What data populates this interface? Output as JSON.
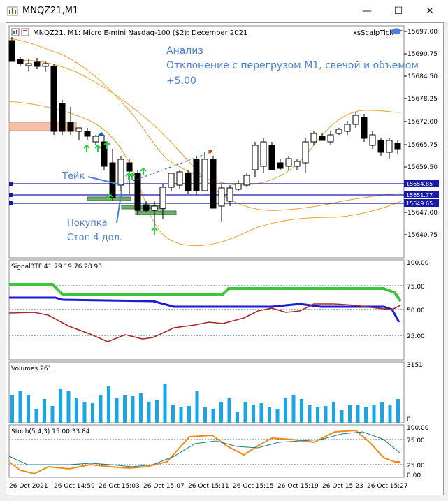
{
  "window": {
    "title": "MNQZ21,M1",
    "minimize_icon": "minimize-icon",
    "maximize_icon": "maximize-icon",
    "close_icon": "close-icon"
  },
  "chart": {
    "header": "MNQZ21, M1:  Micro E-mini Nasdaq-100 ($2): December 2021",
    "indicator_name": "xsScalpTick",
    "annotation_lines": [
      "Анализ",
      "Отклонение с перегрузом М1, свечой и объемом",
      "+5,00"
    ],
    "label_take": "Тейк",
    "label_buy": "Покупка",
    "label_stop": "Стоп 4 дол.",
    "price_ticks": [
      "15697.00",
      "15690.75",
      "15684.50",
      "15678.25",
      "15672.00",
      "15665.75",
      "15659.50",
      "15647.00",
      "15640.75"
    ],
    "price_tags": [
      {
        "label": "15654.85",
        "color": "#1a1aa8"
      },
      {
        "label": "15651.77",
        "color": "#1a1aa8"
      },
      {
        "label": "15649.65",
        "color": "#1a1aa8"
      }
    ],
    "colors": {
      "accent": "#4a7fd4",
      "bands": "#f0a030",
      "levels": "#1a1aa8",
      "bull_arrow": "#2ecc40",
      "bear_arrow": "#e03a20"
    }
  },
  "signal_panel": {
    "label": "Signal3TF 41.79 19.76 28.93",
    "ticks": [
      "100.00",
      "75.00",
      "50.00",
      "25.00"
    ]
  },
  "volume_panel": {
    "label": "Volumes 261",
    "ticks": [
      "3151",
      "0"
    ]
  },
  "stoch_panel": {
    "label": "Stoch(5,4,3) 15.00 33.84",
    "ticks": [
      "100.00",
      "75.00",
      "25.00",
      "0.00"
    ]
  },
  "time_axis": [
    "26 Oct 2021",
    "26 Oct 14:59",
    "26 Oct 15:03",
    "26 Oct 15:07",
    "26 Oct 15:11",
    "26 Oct 15:15",
    "26 Oct 15:19",
    "26 Oct 15:23",
    "26 Oct 15:27"
  ]
}
